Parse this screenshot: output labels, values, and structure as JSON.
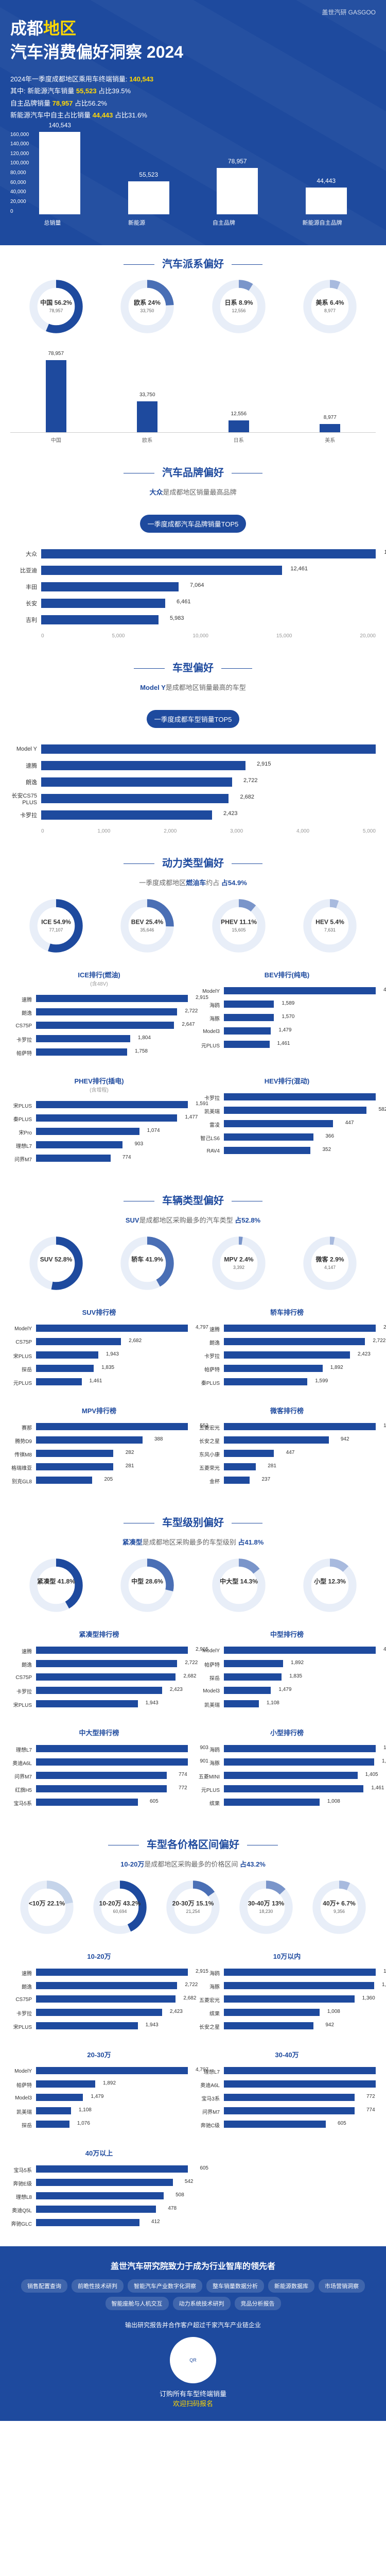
{
  "header": {
    "logo": "盖世汽研 GASGOO",
    "title_prefix": "成都",
    "title_yellow": "地区",
    "title_line2": "汽车消费偏好洞察 2024",
    "stat1_label": "2024年一季度成都地区乘用车终端销量: ",
    "stat1_val": "140,543",
    "stat2_label": "其中: 新能源汽车销量 ",
    "stat2_val": "55,523",
    "stat2_pct": "占比39.5%",
    "stat3_label": "自主品牌销量 ",
    "stat3_val": "78,957",
    "stat3_pct": "占比56.2%",
    "stat4_label": "新能源汽车中自主占比销量 ",
    "stat4_val": "44,443",
    "stat4_pct": "占比31.6%",
    "chart": {
      "axis": [
        "160,000",
        "140,000",
        "120,000",
        "100,000",
        "80,000",
        "60,000",
        "40,000",
        "20,000",
        "0"
      ],
      "bars": [
        {
          "label": "总销量",
          "value": 140543,
          "h": 100
        },
        {
          "label": "新能源",
          "value": 55523,
          "h": 40
        },
        {
          "label": "自主品牌",
          "value": 78957,
          "h": 56
        },
        {
          "label": "新能源自主品牌",
          "value": 44443,
          "h": 32
        }
      ]
    }
  },
  "s1": {
    "title": "汽车派系偏好",
    "donuts": [
      {
        "name": "中国",
        "pct": 56.2,
        "sub": "78,957",
        "color": "#1e4a9e"
      },
      {
        "name": "欧系",
        "pct": 24.0,
        "sub": "33,750",
        "color": "#4a6fb5"
      },
      {
        "name": "日系",
        "pct": 8.9,
        "sub": "12,556",
        "color": "#7a95ca"
      },
      {
        "name": "美系",
        "pct": 6.4,
        "sub": "8,977",
        "color": "#a8bade"
      }
    ],
    "vbars": {
      "max": 90000,
      "groups": [
        "中国",
        "欧系",
        "日系",
        "美系"
      ],
      "series": [
        78957,
        33750,
        12556,
        8977
      ]
    }
  },
  "s2": {
    "title": "汽车品牌偏好",
    "subtitle_hl": "大众",
    "subtitle_rest": "是成都地区销量最高品牌",
    "banner": "一季度成都汽车品牌销量TOP5",
    "bars": [
      {
        "label": "大众",
        "val": 17315,
        "pct": 100
      },
      {
        "label": "比亚迪",
        "val": 12461,
        "pct": 72
      },
      {
        "label": "丰田",
        "val": 7064,
        "pct": 41
      },
      {
        "label": "长安",
        "val": 6461,
        "pct": 37
      },
      {
        "label": "吉利",
        "val": 5983,
        "pct": 35
      }
    ],
    "axis": [
      "0",
      "5,000",
      "10,000",
      "15,000",
      "20,000"
    ]
  },
  "s3": {
    "title": "车型偏好",
    "subtitle_hl": "Model Y",
    "subtitle_rest": "是成都地区销量最高的车型",
    "banner": "一季度成都车型销量TOP5",
    "bars": [
      {
        "label": "Model Y",
        "val": 4797,
        "pct": 100
      },
      {
        "label": "速腾",
        "val": 2915,
        "pct": 61
      },
      {
        "label": "朗逸",
        "val": 2722,
        "pct": 57
      },
      {
        "label": "长安CS75 PLUS",
        "val": 2682,
        "pct": 56
      },
      {
        "label": "卡罗拉",
        "val": 2423,
        "pct": 51
      }
    ],
    "axis": [
      "0",
      "1,000",
      "2,000",
      "3,000",
      "4,000",
      "5,000"
    ]
  },
  "s4": {
    "title": "动力类型偏好",
    "subtitle_pre": "一季度成都地区",
    "subtitle_hl": "燃油车",
    "subtitle_post": "约占",
    "subtitle_pct": "占54.9%",
    "donuts": [
      {
        "name": "ICE",
        "pct": 54.9,
        "sub": "77,107",
        "color": "#1e4a9e"
      },
      {
        "name": "BEV",
        "pct": 25.4,
        "sub": "35,646",
        "color": "#4a6fb5"
      },
      {
        "name": "PHEV",
        "pct": 11.1,
        "sub": "15,605",
        "color": "#7a95ca"
      },
      {
        "name": "HEV",
        "pct": 5.4,
        "sub": "7,631",
        "color": "#a8bade"
      }
    ],
    "cols": [
      {
        "title": "ICE排行(燃油)",
        "sub": "(含48V)",
        "bars": [
          {
            "l": "速腾",
            "v": 2915,
            "p": 100
          },
          {
            "l": "朗逸",
            "v": 2722,
            "p": 93
          },
          {
            "l": "CS75P",
            "v": 2647,
            "p": 91
          },
          {
            "l": "卡罗拉",
            "v": 1804,
            "p": 62
          },
          {
            "l": "帕萨特",
            "v": 1758,
            "p": 60
          }
        ]
      },
      {
        "title": "BEV排行(纯电)",
        "sub": "",
        "bars": [
          {
            "l": "ModelY",
            "v": 4797,
            "p": 100
          },
          {
            "l": "海鸥",
            "v": 1589,
            "p": 33
          },
          {
            "l": "海豚",
            "v": 1570,
            "p": 33
          },
          {
            "l": "Model3",
            "v": 1479,
            "p": 31
          },
          {
            "l": "元PLUS",
            "v": 1461,
            "p": 30
          }
        ]
      },
      {
        "title": "PHEV排行(插电)",
        "sub": "(含增程)",
        "bars": [
          {
            "l": "宋PLUS",
            "v": 1591,
            "p": 100
          },
          {
            "l": "秦PLUS",
            "v": 1477,
            "p": 93
          },
          {
            "l": "宋Pro",
            "v": 1074,
            "p": 68
          },
          {
            "l": "理想L7",
            "v": 903,
            "p": 57
          },
          {
            "l": "问界M7",
            "v": 774,
            "p": 49
          }
        ]
      },
      {
        "title": "HEV排行(混动)",
        "sub": "",
        "bars": [
          {
            "l": "卡罗拉",
            "v": 619,
            "p": 100
          },
          {
            "l": "凯美瑞",
            "v": 582,
            "p": 94
          },
          {
            "l": "雷凌",
            "v": 447,
            "p": 72
          },
          {
            "l": "智己LS6",
            "v": 366,
            "p": 59
          },
          {
            "l": "RAV4",
            "v": 352,
            "p": 57
          }
        ]
      }
    ]
  },
  "s5": {
    "title": "车辆类型偏好",
    "subtitle_hl": "SUV",
    "subtitle_rest": "是成都地区采购最多的汽车类型",
    "subtitle_pct": "占52.8%",
    "donuts": [
      {
        "name": "SUV",
        "pct": 52.8,
        "sub": "",
        "color": "#1e4a9e"
      },
      {
        "name": "轿车",
        "pct": 41.9,
        "sub": "",
        "color": "#4a6fb5"
      },
      {
        "name": "MPV",
        "pct": 2.4,
        "sub": "3,392",
        "color": "#7a95ca"
      },
      {
        "name": "微客",
        "pct": 2.9,
        "sub": "4,147",
        "color": "#a8bade"
      }
    ],
    "cols": [
      {
        "title": "SUV排行榜",
        "bars": [
          {
            "l": "ModelY",
            "v": 4797,
            "p": 100
          },
          {
            "l": "CS75P",
            "v": 2682,
            "p": 56
          },
          {
            "l": "宋PLUS",
            "v": 1943,
            "p": 41
          },
          {
            "l": "探岳",
            "v": 1835,
            "p": 38
          },
          {
            "l": "元PLUS",
            "v": 1461,
            "p": 30
          }
        ]
      },
      {
        "title": "轿车排行榜",
        "bars": [
          {
            "l": "速腾",
            "v": 2915,
            "p": 100
          },
          {
            "l": "朗逸",
            "v": 2722,
            "p": 93
          },
          {
            "l": "卡罗拉",
            "v": 2423,
            "p": 83
          },
          {
            "l": "帕萨特",
            "v": 1892,
            "p": 65
          },
          {
            "l": "秦PLUS",
            "v": 1599,
            "p": 55
          }
        ]
      },
      {
        "title": "MPV排行榜",
        "bars": [
          {
            "l": "赛那",
            "v": 552,
            "p": 100
          },
          {
            "l": "腾势D9",
            "v": 388,
            "p": 70
          },
          {
            "l": "传祺M8",
            "v": 282,
            "p": 51
          },
          {
            "l": "格瑞维亚",
            "v": 281,
            "p": 51
          },
          {
            "l": "别克GL8",
            "v": 205,
            "p": 37
          }
        ]
      },
      {
        "title": "微客排行榜",
        "bars": [
          {
            "l": "五菱宏光",
            "v": 1360,
            "p": 100
          },
          {
            "l": "长安之星",
            "v": 942,
            "p": 69
          },
          {
            "l": "东风小康",
            "v": 447,
            "p": 33
          },
          {
            "l": "五菱荣光",
            "v": 281,
            "p": 21
          },
          {
            "l": "金杯",
            "v": 237,
            "p": 17
          }
        ]
      }
    ]
  },
  "s6": {
    "title": "车型级别偏好",
    "subtitle_hl": "紧凑型",
    "subtitle_rest": "是成都地区采购最多的车型级别",
    "subtitle_pct": "占41.8%",
    "donuts": [
      {
        "name": "紧凑型",
        "pct": 41.8,
        "sub": "",
        "color": "#1e4a9e"
      },
      {
        "name": "中型",
        "pct": 28.6,
        "sub": "",
        "color": "#4a6fb5"
      },
      {
        "name": "中大型",
        "pct": 14.3,
        "sub": "",
        "color": "#7a95ca"
      },
      {
        "name": "小型",
        "pct": 12.3,
        "sub": "",
        "color": "#a8bade"
      }
    ],
    "cols": [
      {
        "title": "紧凑型排行榜",
        "bars": [
          {
            "l": "速腾",
            "v": 2915,
            "p": 100
          },
          {
            "l": "朗逸",
            "v": 2722,
            "p": 93
          },
          {
            "l": "CS75P",
            "v": 2682,
            "p": 92
          },
          {
            "l": "卡罗拉",
            "v": 2423,
            "p": 83
          },
          {
            "l": "宋PLUS",
            "v": 1943,
            "p": 67
          }
        ]
      },
      {
        "title": "中型排行榜",
        "bars": [
          {
            "l": "ModelY",
            "v": 4797,
            "p": 100
          },
          {
            "l": "帕萨特",
            "v": 1892,
            "p": 39
          },
          {
            "l": "探岳",
            "v": 1835,
            "p": 38
          },
          {
            "l": "Model3",
            "v": 1479,
            "p": 31
          },
          {
            "l": "凯美瑞",
            "v": 1108,
            "p": 23
          }
        ]
      },
      {
        "title": "中大型排行榜",
        "bars": [
          {
            "l": "理想L7",
            "v": 903,
            "p": 100
          },
          {
            "l": "奥迪A6L",
            "v": 901,
            "p": 100
          },
          {
            "l": "问界M7",
            "v": 774,
            "p": 86
          },
          {
            "l": "红旗H5",
            "v": 772,
            "p": 86
          },
          {
            "l": "宝马5系",
            "v": 605,
            "p": 67
          }
        ]
      },
      {
        "title": "小型排行榜",
        "bars": [
          {
            "l": "海鸥",
            "v": 1589,
            "p": 100
          },
          {
            "l": "海豚",
            "v": 1570,
            "p": 99
          },
          {
            "l": "五菱MINI",
            "v": 1405,
            "p": 88
          },
          {
            "l": "元PLUS",
            "v": 1461,
            "p": 92
          },
          {
            "l": "缤果",
            "v": 1008,
            "p": 63
          }
        ]
      }
    ]
  },
  "s7": {
    "title": "车型各价格区间偏好",
    "subtitle_hl": "10-20万",
    "subtitle_rest": "是成都地区采购最多的价格区间",
    "subtitle_pct": "占43.2%",
    "donuts": [
      {
        "name": "<10万",
        "pct": 22.1,
        "sub": "",
        "color": "#c5d4ea"
      },
      {
        "name": "10-20万",
        "pct": 43.2,
        "sub": "60,694",
        "color": "#1e4a9e"
      },
      {
        "name": "20-30万",
        "pct": 15.1,
        "sub": "21,254",
        "color": "#4a6fb5"
      },
      {
        "name": "30-40万",
        "pct": 13.0,
        "sub": "18,230",
        "color": "#7a95ca"
      },
      {
        "name": "40万+",
        "pct": 6.7,
        "sub": "9,356",
        "color": "#a8bade"
      }
    ],
    "tables": [
      {
        "title": "10-20万",
        "bars": [
          {
            "l": "速腾",
            "v": 2915,
            "p": 100
          },
          {
            "l": "朗逸",
            "v": 2722,
            "p": 93
          },
          {
            "l": "CS75P",
            "v": 2682,
            "p": 92
          },
          {
            "l": "卡罗拉",
            "v": 2423,
            "p": 83
          },
          {
            "l": "宋PLUS",
            "v": 1943,
            "p": 67
          }
        ]
      },
      {
        "title": "10万以内",
        "bars": [
          {
            "l": "海鸥",
            "v": 1589,
            "p": 100
          },
          {
            "l": "海豚",
            "v": 1570,
            "p": 99
          },
          {
            "l": "五菱宏光",
            "v": 1360,
            "p": 86
          },
          {
            "l": "缤果",
            "v": 1008,
            "p": 63
          },
          {
            "l": "长安之星",
            "v": 942,
            "p": 59
          }
        ]
      },
      {
        "title": "20-30万",
        "bars": [
          {
            "l": "ModelY",
            "v": 4797,
            "p": 100
          },
          {
            "l": "帕萨特",
            "v": 1892,
            "p": 39
          },
          {
            "l": "Model3",
            "v": 1479,
            "p": 31
          },
          {
            "l": "凯美瑞",
            "v": 1108,
            "p": 23
          },
          {
            "l": "探岳",
            "v": 1076,
            "p": 22
          }
        ]
      },
      {
        "title": "30-40万",
        "bars": [
          {
            "l": "理想L7",
            "v": 903,
            "p": 100
          },
          {
            "l": "奥迪A6L",
            "v": 901,
            "p": 100
          },
          {
            "l": "宝马3系",
            "v": 772,
            "p": 86
          },
          {
            "l": "问界M7",
            "v": 774,
            "p": 86
          },
          {
            "l": "奔驰C级",
            "v": 605,
            "p": 67
          }
        ]
      },
      {
        "title": "40万以上",
        "bars": [
          {
            "l": "宝马5系",
            "v": 605,
            "p": 100
          },
          {
            "l": "奔驰E级",
            "v": 542,
            "p": 90
          },
          {
            "l": "理想L8",
            "v": 508,
            "p": 84
          },
          {
            "l": "奥迪Q5L",
            "v": 478,
            "p": 79
          },
          {
            "l": "奔驰GLC",
            "v": 412,
            "p": 68
          }
        ]
      }
    ]
  },
  "footer": {
    "title": "盖世汽车研究院致力于成为行业智库的领先者",
    "items": [
      "销售配置查询",
      "前瞻性技术研判",
      "智能汽车产业数字化洞察",
      "整车销量数据分析",
      "新能源数据库",
      "市场营销洞察",
      "智能座舱与人机交互",
      "动力系统技术研判",
      "竞品分析报告"
    ],
    "mid": "输出研究报告并合作客户超过千家汽车产业链企业",
    "cta_line1": "订购所有车型终端销量",
    "cta_line2": "欢迎扫码报名",
    "qr": "QR"
  },
  "colors": {
    "primary": "#1e4a9e",
    "accent": "#ffd700",
    "bg": "#ffffff"
  }
}
